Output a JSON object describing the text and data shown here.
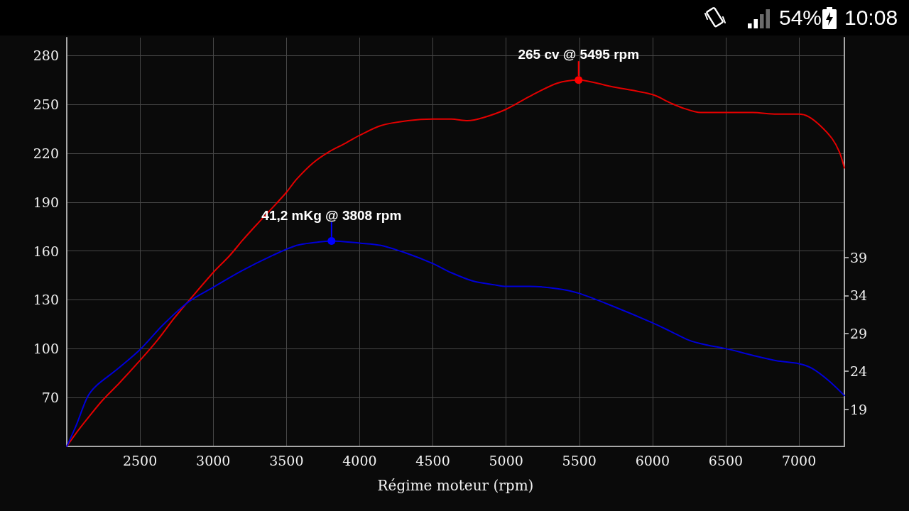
{
  "chart_data": {
    "type": "line",
    "xlabel": "Régime moteur (rpm)",
    "xlim": [
      2000,
      7310
    ],
    "xticks": [
      2500,
      3000,
      3500,
      4000,
      4500,
      5000,
      5500,
      6000,
      6500,
      7000
    ],
    "ylim": [
      40,
      291
    ],
    "yticks": [
      70,
      100,
      130,
      160,
      190,
      220,
      250,
      280
    ],
    "y2lim": [
      14.1,
      68
    ],
    "y2ticks": [
      19,
      24,
      29,
      34,
      39
    ],
    "grid": true,
    "series": [
      {
        "color": "#e30000",
        "x": [
          2000,
          2063,
          2141,
          2241,
          2360,
          2502,
          2617,
          2736,
          2834,
          3002,
          3111,
          3200,
          3300,
          3430,
          3500,
          3569,
          3681,
          3793,
          3900,
          4000,
          4145,
          4330,
          4500,
          4626,
          4737,
          4848,
          5000,
          5163,
          5349,
          5495,
          5715,
          6000,
          6120,
          6200,
          6329,
          6500,
          6685,
          6846,
          7000,
          7065,
          7145,
          7226,
          7275,
          7310
        ],
        "values": [
          40,
          48,
          57,
          68,
          79,
          93,
          105,
          119,
          129.5,
          147,
          157,
          166.5,
          176.5,
          189,
          196,
          204,
          214,
          221,
          226,
          231,
          237,
          240,
          241,
          241,
          240,
          242,
          247,
          255,
          263,
          265,
          261,
          256,
          251,
          248,
          245,
          245,
          245,
          244,
          244,
          242.5,
          237,
          229,
          221,
          211
        ]
      },
      {
        "color": "#0000d8",
        "axis": "y2",
        "x": [
          2000,
          2063,
          2141,
          2202,
          2340,
          2502,
          2656,
          2834,
          3002,
          3190,
          3408,
          3569,
          3700,
          3808,
          4000,
          4145,
          4330,
          4500,
          4626,
          4774,
          4922,
          5000,
          5163,
          5349,
          5495,
          5715,
          6000,
          6120,
          6249,
          6362,
          6500,
          6685,
          6846,
          7000,
          7088,
          7201,
          7310
        ],
        "values": [
          14.1,
          16.8,
          20.6,
          22.1,
          24.2,
          26.9,
          30.1,
          33.2,
          35.1,
          37.2,
          39.3,
          40.6,
          41.0,
          41.2,
          40.9,
          40.6,
          39.5,
          38.2,
          37.0,
          35.9,
          35.4,
          35.2,
          35.2,
          34.9,
          34.3,
          32.7,
          30.4,
          29.3,
          28.1,
          27.5,
          27.0,
          26.1,
          25.4,
          25.0,
          24.4,
          22.8,
          20.8
        ]
      },
      {
        "type": "scatter",
        "color": "#ff0000",
        "x": [
          5495
        ],
        "values": [
          265
        ],
        "value_labels": [
          "265 cv @ 5495 rpm"
        ]
      },
      {
        "type": "scatter",
        "color": "#0000ff",
        "axis": "y2",
        "x": [
          3808
        ],
        "values": [
          41.2
        ],
        "value_labels": [
          "41,2 mKg @ 3808 rpm"
        ]
      }
    ],
    "annotations": [
      "54%",
      "10:08"
    ]
  }
}
